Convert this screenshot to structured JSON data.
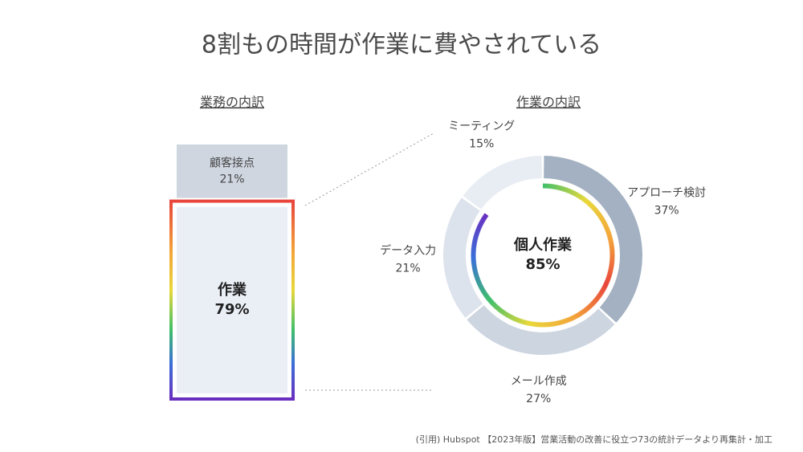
{
  "title": "8割もの時間が作業に費やされている",
  "source": "(引用) Hubspot 【2023年版】営業活動の改善に役立つ73の統計データより再集計・加工",
  "chart_data": [
    {
      "type": "stacked-column",
      "title": "業務の内訳",
      "categories": [
        "顧客接点",
        "作業"
      ],
      "values": [
        21,
        79
      ],
      "value_labels": [
        "21%",
        "79%"
      ],
      "colors": [
        "#cfd6e0",
        "#eaeff6"
      ]
    },
    {
      "type": "donut",
      "title": "作業の内訳",
      "categories": [
        "アプローチ検討",
        "メール作成",
        "データ入力",
        "ミーティング"
      ],
      "values": [
        37,
        27,
        21,
        15
      ],
      "value_labels": [
        "37%",
        "27%",
        "21%",
        "15%"
      ],
      "colors": [
        "#a3b1c2",
        "#ccd5e0",
        "#dde3ec",
        "#e8edf4"
      ],
      "center_label": "個人作業",
      "center_value": 85,
      "center_value_label": "85%"
    }
  ]
}
